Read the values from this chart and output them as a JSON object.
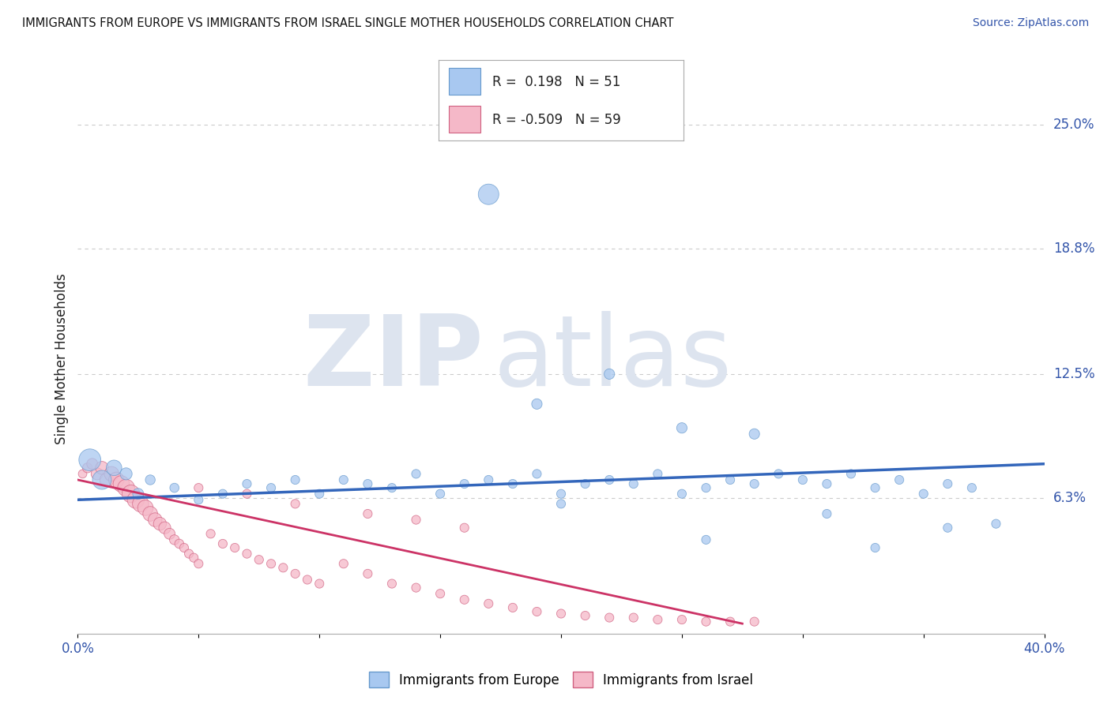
{
  "title": "IMMIGRANTS FROM EUROPE VS IMMIGRANTS FROM ISRAEL SINGLE MOTHER HOUSEHOLDS CORRELATION CHART",
  "source": "Source: ZipAtlas.com",
  "ylabel": "Single Mother Households",
  "xlim": [
    0.0,
    0.4
  ],
  "ylim": [
    -0.005,
    0.27
  ],
  "yticks_right": [
    0.063,
    0.125,
    0.188,
    0.25
  ],
  "yticks_right_labels": [
    "6.3%",
    "12.5%",
    "18.8%",
    "25.0%"
  ],
  "blue_R": "0.198",
  "blue_N": "51",
  "pink_R": "-0.509",
  "pink_N": "59",
  "blue_color": "#a8c8f0",
  "pink_color": "#f5b8c8",
  "blue_edge_color": "#6699cc",
  "pink_edge_color": "#d06080",
  "blue_line_color": "#3366bb",
  "pink_line_color": "#cc3366",
  "watermark_zip": "ZIP",
  "watermark_atlas": "atlas",
  "watermark_color": "#dde4ef",
  "blue_scatter_x": [
    0.005,
    0.01,
    0.015,
    0.02,
    0.025,
    0.03,
    0.04,
    0.05,
    0.06,
    0.07,
    0.08,
    0.09,
    0.1,
    0.11,
    0.12,
    0.13,
    0.14,
    0.15,
    0.16,
    0.17,
    0.18,
    0.19,
    0.2,
    0.21,
    0.22,
    0.23,
    0.24,
    0.25,
    0.26,
    0.27,
    0.28,
    0.29,
    0.3,
    0.31,
    0.32,
    0.33,
    0.34,
    0.35,
    0.36,
    0.37,
    0.38,
    0.19,
    0.22,
    0.25,
    0.17,
    0.28,
    0.31,
    0.2,
    0.26,
    0.33,
    0.36
  ],
  "blue_scatter_y": [
    0.082,
    0.072,
    0.078,
    0.075,
    0.065,
    0.072,
    0.068,
    0.062,
    0.065,
    0.07,
    0.068,
    0.072,
    0.065,
    0.072,
    0.07,
    0.068,
    0.075,
    0.065,
    0.07,
    0.072,
    0.07,
    0.075,
    0.065,
    0.07,
    0.072,
    0.07,
    0.075,
    0.065,
    0.068,
    0.072,
    0.07,
    0.075,
    0.072,
    0.07,
    0.075,
    0.068,
    0.072,
    0.065,
    0.07,
    0.068,
    0.05,
    0.11,
    0.125,
    0.098,
    0.215,
    0.095,
    0.055,
    0.06,
    0.042,
    0.038,
    0.048
  ],
  "blue_scatter_sizes": [
    400,
    300,
    200,
    120,
    100,
    80,
    70,
    65,
    65,
    65,
    65,
    65,
    65,
    65,
    65,
    65,
    65,
    65,
    65,
    65,
    65,
    65,
    65,
    65,
    65,
    65,
    65,
    65,
    65,
    65,
    65,
    65,
    65,
    65,
    65,
    65,
    65,
    65,
    65,
    65,
    65,
    90,
    90,
    90,
    350,
    90,
    65,
    65,
    65,
    65,
    65
  ],
  "pink_scatter_x": [
    0.002,
    0.004,
    0.006,
    0.008,
    0.01,
    0.012,
    0.014,
    0.016,
    0.018,
    0.02,
    0.022,
    0.024,
    0.026,
    0.028,
    0.03,
    0.032,
    0.034,
    0.036,
    0.038,
    0.04,
    0.042,
    0.044,
    0.046,
    0.048,
    0.05,
    0.055,
    0.06,
    0.065,
    0.07,
    0.075,
    0.08,
    0.085,
    0.09,
    0.095,
    0.1,
    0.11,
    0.12,
    0.13,
    0.14,
    0.15,
    0.16,
    0.17,
    0.18,
    0.19,
    0.2,
    0.21,
    0.22,
    0.23,
    0.24,
    0.25,
    0.26,
    0.27,
    0.28,
    0.14,
    0.16,
    0.12,
    0.09,
    0.07,
    0.05
  ],
  "pink_scatter_y": [
    0.075,
    0.078,
    0.08,
    0.075,
    0.078,
    0.072,
    0.075,
    0.072,
    0.07,
    0.068,
    0.065,
    0.062,
    0.06,
    0.058,
    0.055,
    0.052,
    0.05,
    0.048,
    0.045,
    0.042,
    0.04,
    0.038,
    0.035,
    0.033,
    0.03,
    0.045,
    0.04,
    0.038,
    0.035,
    0.032,
    0.03,
    0.028,
    0.025,
    0.022,
    0.02,
    0.03,
    0.025,
    0.02,
    0.018,
    0.015,
    0.012,
    0.01,
    0.008,
    0.006,
    0.005,
    0.004,
    0.003,
    0.003,
    0.002,
    0.002,
    0.001,
    0.001,
    0.001,
    0.052,
    0.048,
    0.055,
    0.06,
    0.065,
    0.068
  ],
  "pink_scatter_sizes": [
    60,
    80,
    100,
    120,
    140,
    160,
    180,
    200,
    220,
    240,
    260,
    240,
    220,
    200,
    180,
    160,
    140,
    120,
    100,
    80,
    70,
    65,
    65,
    65,
    65,
    65,
    65,
    65,
    65,
    65,
    65,
    65,
    65,
    65,
    65,
    65,
    65,
    65,
    65,
    65,
    65,
    65,
    65,
    65,
    65,
    65,
    65,
    65,
    65,
    65,
    65,
    65,
    65,
    65,
    65,
    65,
    65,
    65,
    65
  ],
  "blue_trend_x0": 0.0,
  "blue_trend_x1": 0.4,
  "blue_trend_y0": 0.062,
  "blue_trend_y1": 0.08,
  "pink_trend_x0": 0.0,
  "pink_trend_x1": 0.275,
  "pink_trend_y0": 0.072,
  "pink_trend_y1": 0.0,
  "background_color": "#ffffff",
  "grid_color": "#cccccc"
}
